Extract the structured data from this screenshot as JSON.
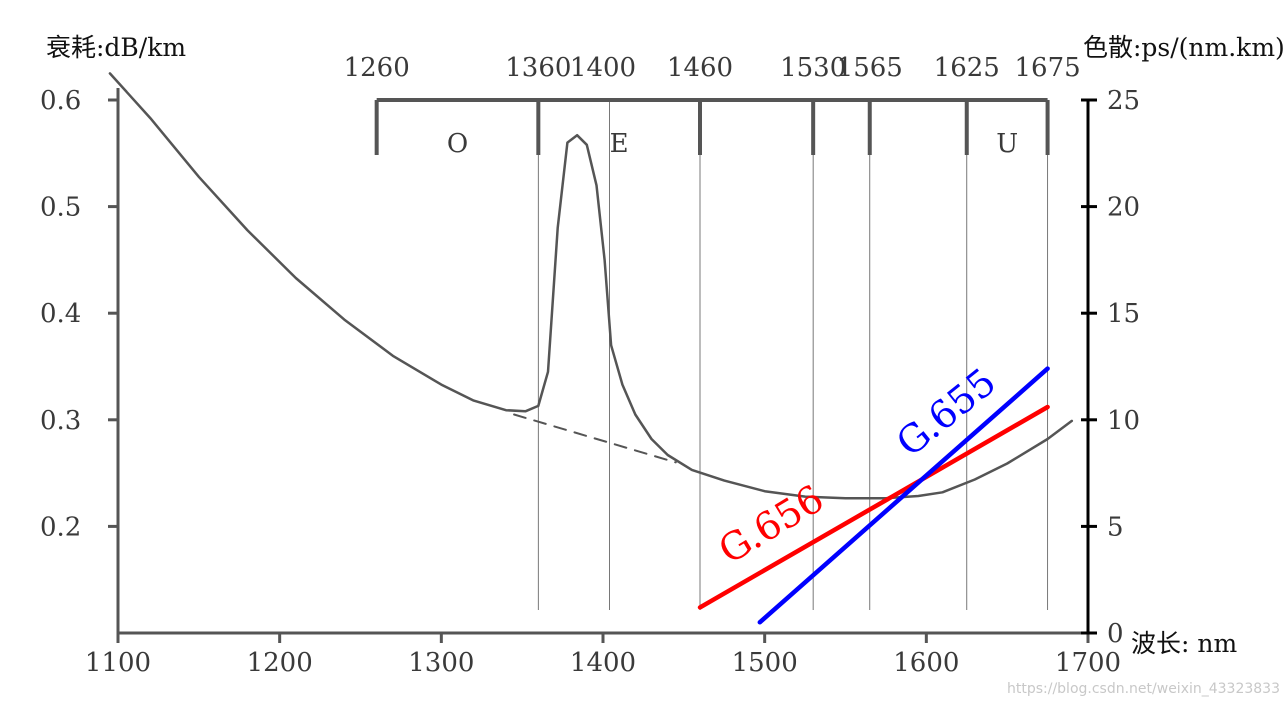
{
  "chart_data": {
    "type": "line",
    "title": "",
    "xlabel": "波长: nm",
    "ylabel_left": "衰耗:dB/km",
    "ylabel_right": "色散:ps/(nm.km)",
    "x_range": [
      1100,
      1700
    ],
    "y_left_range": [
      0.1,
      0.6
    ],
    "y_right_range": [
      0,
      25
    ],
    "x_ticks": [
      1100,
      1200,
      1300,
      1400,
      1500,
      1600,
      1700
    ],
    "x_tick_labels": [
      "1100",
      "1200",
      "1300",
      "1400",
      "1500",
      "1600",
      "1700"
    ],
    "y_left_ticks": [
      0.2,
      0.3,
      0.4,
      0.5,
      0.6
    ],
    "y_left_tick_labels": [
      "0.2",
      "0.3",
      "0.4",
      "0.5",
      "0.6"
    ],
    "y_right_ticks": [
      0,
      5,
      10,
      15,
      20,
      25
    ],
    "y_right_tick_labels": [
      "0",
      "5",
      "10",
      "15",
      "20",
      "25"
    ],
    "band_edges": [
      1260,
      1360,
      1460,
      1530,
      1565,
      1625,
      1675
    ],
    "band_top_labels": [
      {
        "text": "1260",
        "x": 1260
      },
      {
        "text": "1360",
        "x": 1360
      },
      {
        "text": "1400",
        "x": 1400
      },
      {
        "text": "1460",
        "x": 1460
      },
      {
        "text": "1530",
        "x": 1530
      },
      {
        "text": "1565",
        "x": 1565
      },
      {
        "text": "1625",
        "x": 1625
      },
      {
        "text": "1675",
        "x": 1675
      }
    ],
    "band_names": [
      {
        "text": "O",
        "x": 1310
      },
      {
        "text": "E",
        "x": 1410
      },
      {
        "text": "U",
        "x": 1650
      }
    ],
    "vertical_guides": [
      1360,
      1404,
      1460,
      1530,
      1565,
      1625,
      1675
    ],
    "series": [
      {
        "name": "attenuation",
        "axis": "left",
        "color": "#555555",
        "style": "solid",
        "points": [
          [
            1095,
            0.625
          ],
          [
            1120,
            0.583
          ],
          [
            1150,
            0.528
          ],
          [
            1180,
            0.478
          ],
          [
            1210,
            0.433
          ],
          [
            1240,
            0.394
          ],
          [
            1270,
            0.36
          ],
          [
            1300,
            0.333
          ],
          [
            1320,
            0.318
          ],
          [
            1340,
            0.309
          ],
          [
            1352,
            0.308
          ],
          [
            1360,
            0.313
          ],
          [
            1366,
            0.345
          ],
          [
            1372,
            0.48
          ],
          [
            1378,
            0.56
          ],
          [
            1384,
            0.567
          ],
          [
            1390,
            0.558
          ],
          [
            1396,
            0.52
          ],
          [
            1401,
            0.45
          ],
          [
            1405,
            0.37
          ],
          [
            1412,
            0.333
          ],
          [
            1420,
            0.305
          ],
          [
            1430,
            0.282
          ],
          [
            1440,
            0.267
          ],
          [
            1455,
            0.253
          ],
          [
            1475,
            0.243
          ],
          [
            1500,
            0.233
          ],
          [
            1525,
            0.228
          ],
          [
            1550,
            0.2265
          ],
          [
            1575,
            0.2265
          ],
          [
            1595,
            0.2285
          ],
          [
            1610,
            0.232
          ],
          [
            1630,
            0.244
          ],
          [
            1650,
            0.259
          ],
          [
            1675,
            0.282
          ],
          [
            1690,
            0.299
          ]
        ]
      },
      {
        "name": "attenuation-extrapolated",
        "axis": "left",
        "color": "#555555",
        "style": "dashed",
        "points": [
          [
            1345,
            0.305
          ],
          [
            1445,
            0.26
          ]
        ]
      },
      {
        "name": "G.656",
        "axis": "right",
        "color": "#ff0000",
        "label": "G.656",
        "points": [
          [
            1460,
            1.2
          ],
          [
            1675,
            10.6
          ]
        ]
      },
      {
        "name": "G.655",
        "axis": "right",
        "color": "#0000ff",
        "label": "G.655",
        "points": [
          [
            1497,
            0.5
          ],
          [
            1675,
            12.4
          ]
        ]
      }
    ],
    "series_labels": [
      {
        "text": "G.656",
        "color": "#ff0000"
      },
      {
        "text": "G.655",
        "color": "#0000ff"
      }
    ]
  },
  "watermark": "https://blog.csdn.net/weixin_43323833"
}
